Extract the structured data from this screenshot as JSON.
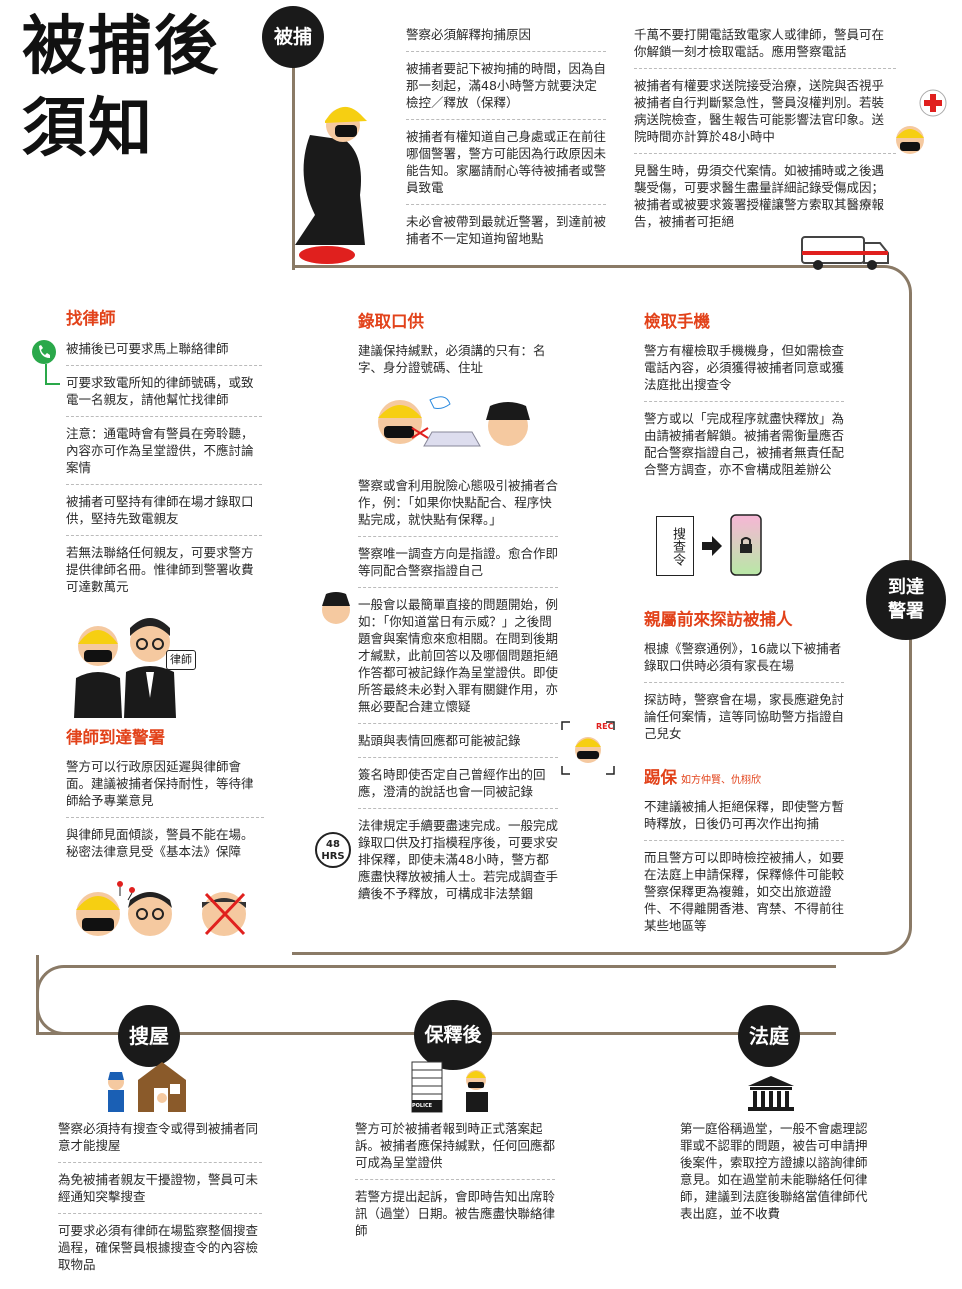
{
  "title_line1": "被捕後",
  "title_line2": "須知",
  "stages": {
    "arrest": "被捕",
    "arrive": "到達\n警署",
    "search": "搜屋",
    "bail": "保釋後",
    "court": "法庭"
  },
  "arrest_col1": [
    "警察必須解釋拘捕原因",
    "被捕者要記下被拘捕的時間，因為自那一刻起，滿48小時警方就要決定檢控／釋放（保釋）",
    "被捕者有權知道自己身處或正在前往哪個警署，警方可能因為行政原因未能告知。家屬請耐心等待被捕者或警員致電",
    "未必會被帶到最就近警署，到達前被捕者不一定知道拘留地點"
  ],
  "arrest_col2": [
    "千萬不要打開電話致電家人或律師，警員可在你解鎖一刻才檢取電話。應用警察電話",
    "被捕者有權要求送院接受治療，送院與否視乎被捕者自行判斷緊急性，警員沒權判別。若裝病送院檢查，醫生報告可能影響法官印象。送院時間亦計算於48小時中",
    "見醫生時，毋須交代案情。如被捕時或之後遇襲受傷，可要求醫生盡量詳細記錄受傷成因；被捕者或被要求簽署授權讓警方索取其醫療報告，被捕者可拒絕"
  ],
  "lawyer": {
    "heading": "找律師",
    "items": [
      "被捕後已可要求馬上聯絡律師",
      "可要求致電所知的律師號碼，或致電一名親友，請他幫忙找律師",
      "注意：通電時會有警員在旁聆聽，內容亦可作為呈堂證供，不應討論案情",
      "被捕者可堅持有律師在場才錄取口供，堅持先致電親友",
      "若無法聯絡任何親友，可要求警方提供律師名冊。惟律師到警署收費可達數萬元"
    ]
  },
  "lawyer_sign": "律師",
  "lawyer_arrive": {
    "heading": "律師到達警署",
    "items": [
      "警方可以行政原因延遲與律師會面。建議被捕者保持耐性，等待律師給予專業意見",
      "與律師見面傾談，警員不能在場。秘密法律意見受《基本法》保障"
    ]
  },
  "statement": {
    "heading": "錄取口供",
    "items": [
      "建議保持緘默，必須講的只有：名字、身分證號碼、住址",
      "警察或會利用脫險心態吸引被捕者合作，例：「如果你快點配合、程序快點完成，就快點有保釋。」",
      "警察唯一調查方向是指證。愈合作即等同配合警察指證自己",
      "一般會以最簡單直接的問題開始，例如：「你知道當日有示威？」之後問題會與案情愈來愈相關。在問到後期才緘默，此前回答以及哪個問題拒絕作答都可被記錄作為呈堂證供。即使所答最終未必對入罪有關鍵作用，亦無必要配合建立懷疑",
      "點頭與表情回應都可能被記錄",
      "簽名時即使否定自己曾經作出的回應，澄清的說話也會一同被記錄",
      "法律規定手續要盡速完成。一般完成錄取口供及打指模程序後，可要求安排保釋，即使未滿48小時，警方都應盡快釋放被捕人士。若完成調查手續後不予釋放，可構成非法禁錮"
    ]
  },
  "hrs_label": "48\nHRS",
  "rec_label": "REC",
  "phone": {
    "heading": "檢取手機",
    "items": [
      "警方有權檢取手機機身，但如需檢查電話內容，必須獲得被捕者同意或獲法庭批出搜查令",
      "警方或以「完成程序就盡快釋放」為由請被捕者解鎖。被捕者需衡量應否配合警察指證自己，被捕者無責任配合警方調查，亦不會構成阻差辦公"
    ]
  },
  "warrant_label": "搜查令",
  "visit": {
    "heading": "親屬前來探訪被捕人",
    "items": [
      "根據《警察通例》，16歲以下被捕者錄取口供時必須有家長在場",
      "探訪時，警察會在場，家長應避免討論任何案情，這等同協助警方指證自己兒女"
    ]
  },
  "bail": {
    "heading": "踢保",
    "sub": "如方仲賢、仇栩欣",
    "items": [
      "不建議被捕人拒絕保釋，即使警方暫時釋放，日後仍可再次作出拘捕",
      "而且警方可以即時檢控被捕人，如要在法庭上申請保釋，保釋條件可能較警察保釋更為複雜，如交出旅遊證件、不得離開香港、宵禁、不得前往某些地區等"
    ]
  },
  "search_items": [
    "警察必須持有搜查令或得到被捕者同意才能搜屋",
    "為免被捕者親友干擾證物，警員可未經通知突擊搜查",
    "可要求必須有律師在場監察整個搜查過程，確保警員根據搜查令的內容檢取物品"
  ],
  "police_label": "POLICE",
  "bail_after_items": [
    "警方可於被捕者報到時正式落案起訴。被捕者應保持緘默，任何回應都可成為呈堂證供",
    "若警方提出起訴，會即時告知出席聆訊（過堂）日期。被告應盡快聯絡律師"
  ],
  "court_items": [
    "第一庭俗稱過堂，一般不會處理認罪或不認罪的問題，被告可申請押後案件，索取控方證據以諮詢律師意見。如在過堂前未能聯絡任何律師，建議到法庭後聯絡當值律師代表出庭，並不收費"
  ],
  "colors": {
    "accent": "#e2421a",
    "helmet": "#f6cf12",
    "path": "#8a7a66"
  }
}
